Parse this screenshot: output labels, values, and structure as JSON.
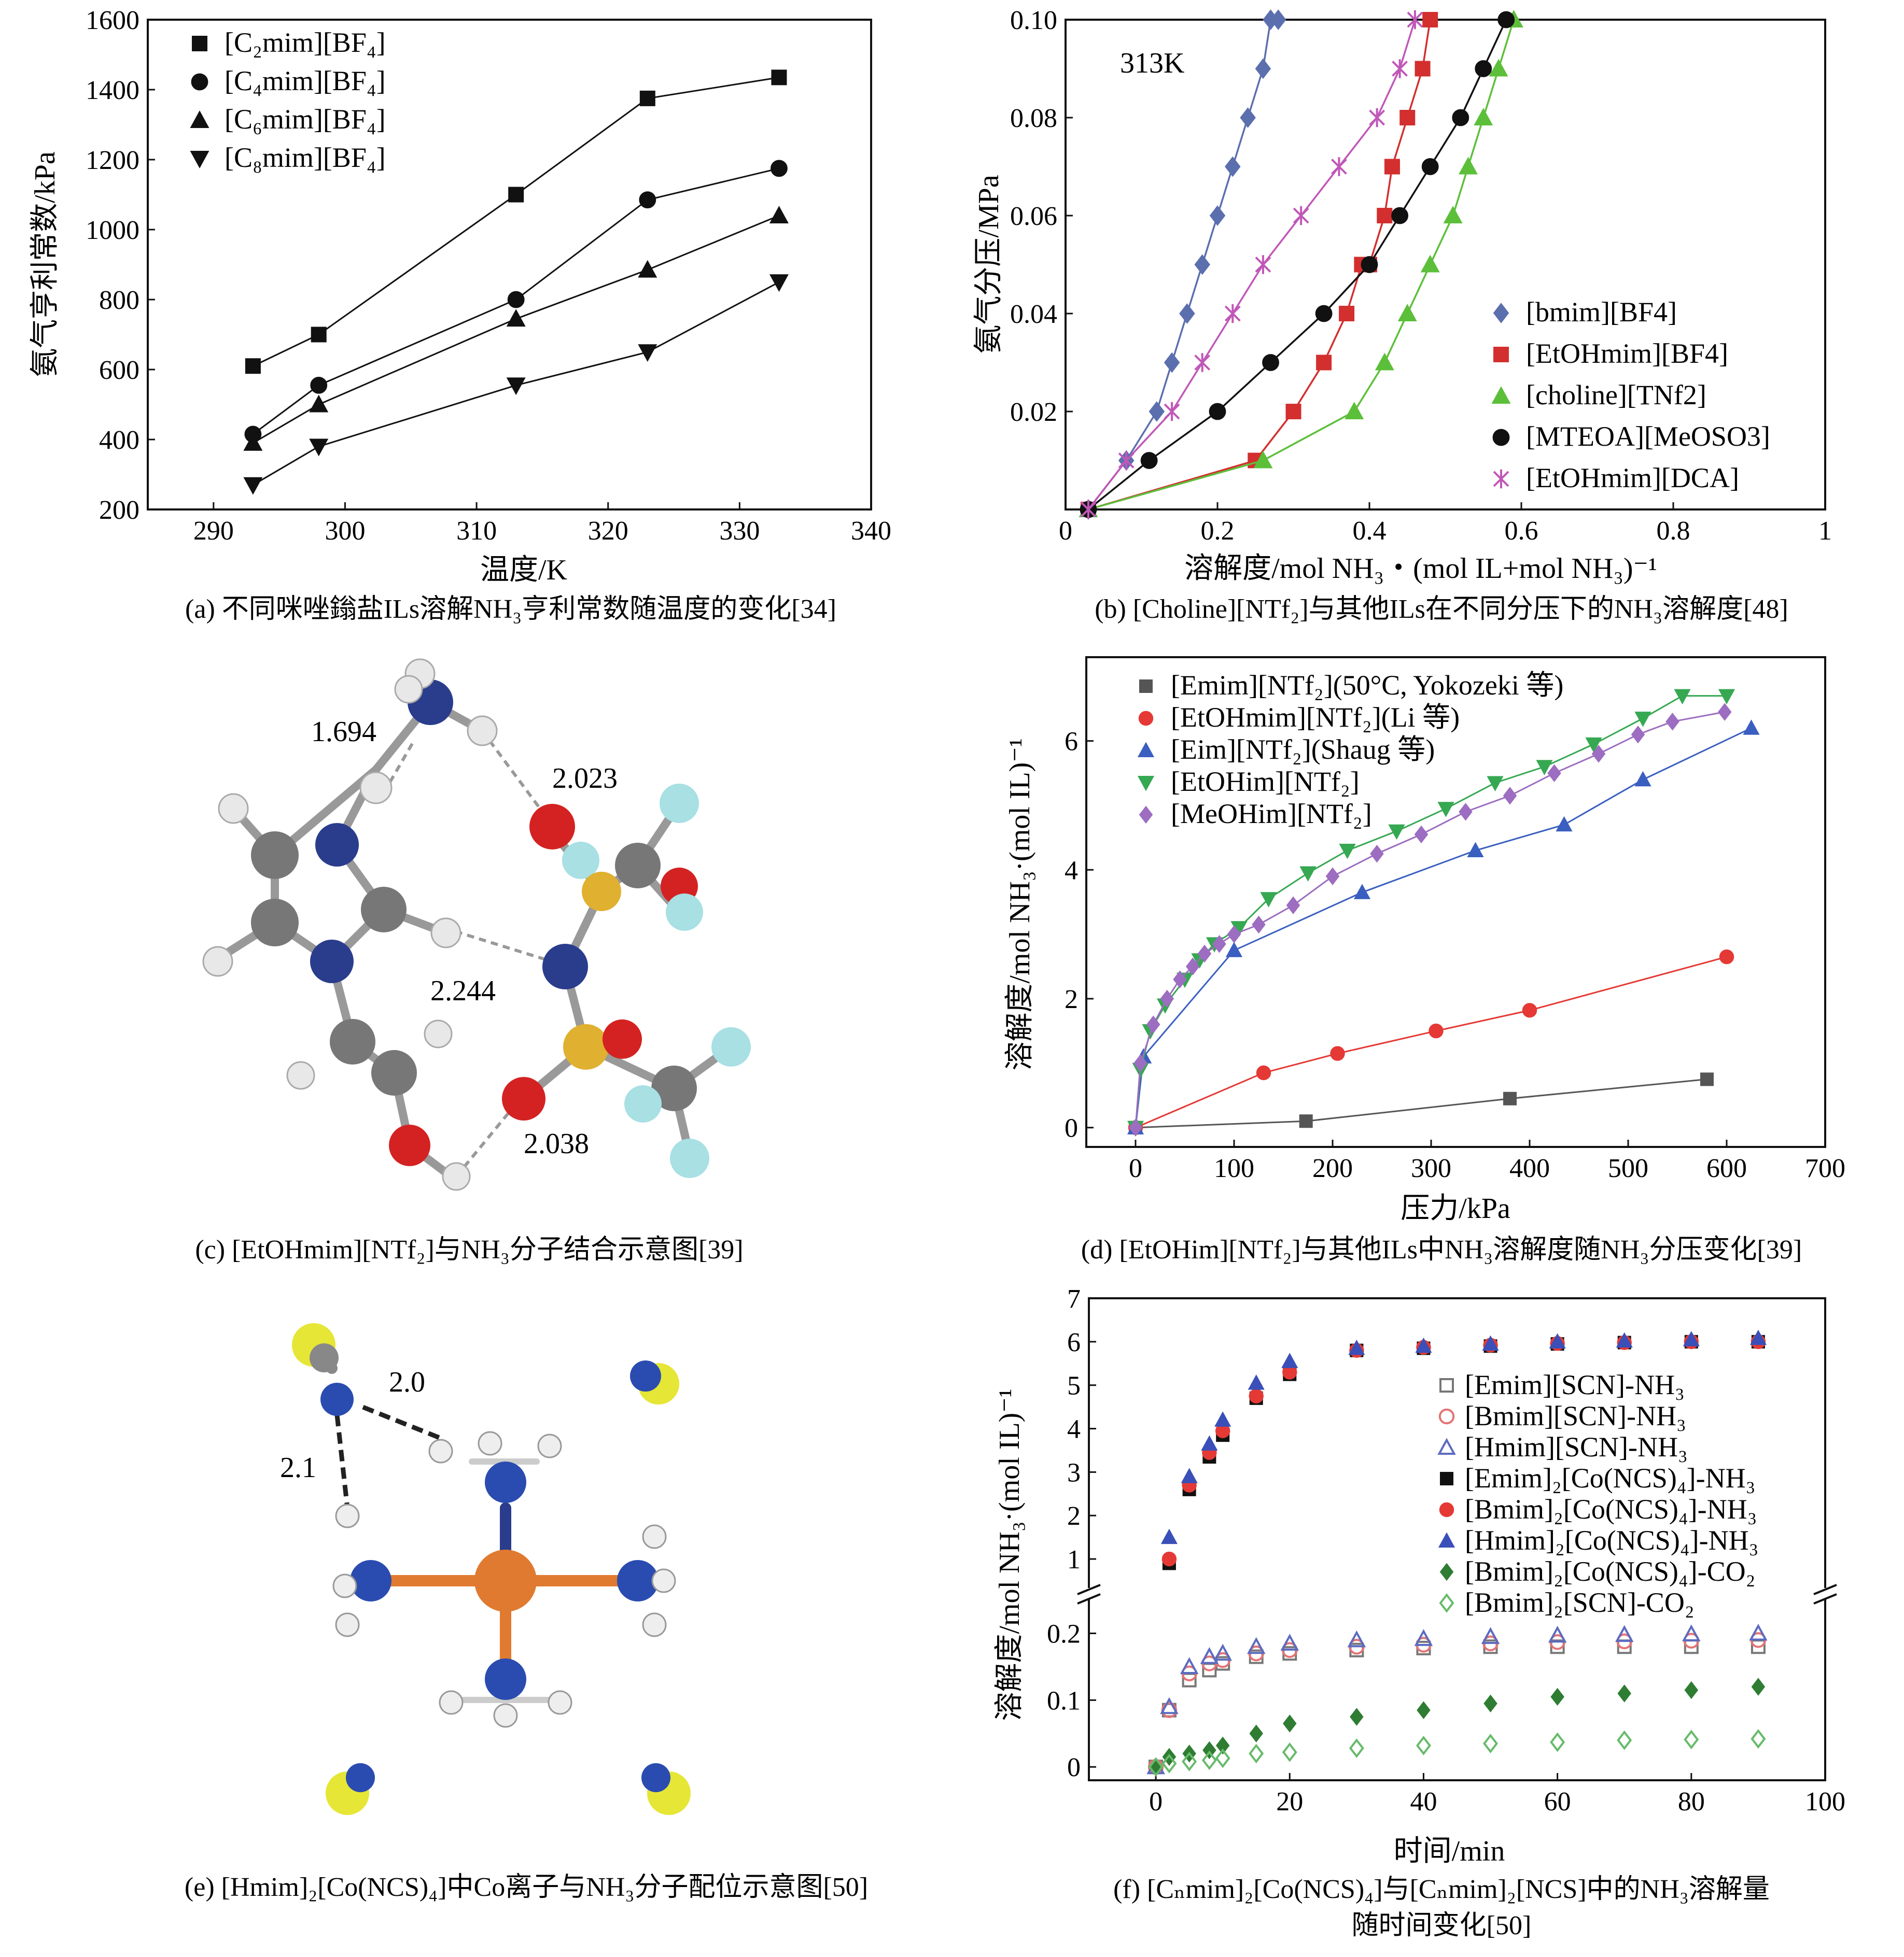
{
  "chart_data": [
    {
      "id": "a",
      "type": "line",
      "caption": "(a) 不同咪唑鎓盐ILs溶解NH₃亨利常数随温度的变化[34]",
      "xlabel": "温度/K",
      "ylabel": "氨气亨利常数/kPa",
      "xlim": [
        285,
        340
      ],
      "ylim": [
        200,
        1600
      ],
      "xticks": [
        290,
        300,
        310,
        320,
        330,
        340
      ],
      "yticks": [
        200,
        400,
        600,
        800,
        1000,
        1200,
        1400,
        1600
      ],
      "legend_position": "top-left",
      "series": [
        {
          "name": "[C₂mim][BF₄]",
          "marker": "square",
          "color": "#111111",
          "x": [
            293,
            298,
            313,
            323,
            333
          ],
          "y": [
            610,
            700,
            1100,
            1375,
            1435
          ]
        },
        {
          "name": "[C₄mim][BF₄]",
          "marker": "circle",
          "color": "#111111",
          "x": [
            293,
            298,
            313,
            323,
            333
          ],
          "y": [
            415,
            555,
            800,
            1085,
            1175
          ]
        },
        {
          "name": "[C₆mim][BF₄]",
          "marker": "triangle-up",
          "color": "#111111",
          "x": [
            293,
            298,
            313,
            323,
            333
          ],
          "y": [
            390,
            500,
            745,
            885,
            1040
          ]
        },
        {
          "name": "[C₈mim][BF₄]",
          "marker": "triangle-down",
          "color": "#111111",
          "x": [
            293,
            298,
            313,
            323,
            333
          ],
          "y": [
            270,
            380,
            555,
            650,
            850
          ]
        }
      ]
    },
    {
      "id": "b",
      "type": "line",
      "caption": "(b) [Choline][NTf₂]与其他ILs在不同分压下的NH₃溶解度[48]",
      "xlabel": "溶解度/mol NH₃・(mol IL+mol NH₃)⁻¹",
      "ylabel": "氨气分压/MPa",
      "annotation": "313K",
      "xlim": [
        0,
        1
      ],
      "ylim": [
        0,
        0.1
      ],
      "xticks": [
        0,
        0.2,
        0.4,
        0.6,
        0.8,
        1
      ],
      "xtick_labels": [
        "0",
        "0.2",
        "0.4",
        "0.6",
        "0.8",
        "1"
      ],
      "yticks": [
        0.02,
        0.04,
        0.06,
        0.08,
        0.1
      ],
      "ytick_labels": [
        "0.02",
        "0.04",
        "0.06",
        "0.08",
        "0.10"
      ],
      "legend_position": "bottom-right",
      "series": [
        {
          "name": "[bmim][BF4]",
          "marker": "diamond",
          "color": "#5b6fae",
          "x": [
            0.03,
            0.08,
            0.12,
            0.14,
            0.16,
            0.18,
            0.2,
            0.22,
            0.24,
            0.26,
            0.27,
            0.28
          ],
          "y": [
            0,
            0.01,
            0.02,
            0.03,
            0.04,
            0.05,
            0.06,
            0.07,
            0.08,
            0.09,
            0.1,
            0.1
          ]
        },
        {
          "name": "[EtOHmim][BF4]",
          "marker": "square",
          "color": "#d32f2f",
          "x": [
            0.03,
            0.25,
            0.3,
            0.34,
            0.37,
            0.39,
            0.4,
            0.42,
            0.43,
            0.45,
            0.47,
            0.48
          ],
          "y": [
            0,
            0.01,
            0.02,
            0.03,
            0.04,
            0.05,
            0.05,
            0.06,
            0.07,
            0.08,
            0.09,
            0.1
          ]
        },
        {
          "name": "[choline][TNf2]",
          "marker": "triangle-up",
          "color": "#5cbf3a",
          "x": [
            0.03,
            0.26,
            0.38,
            0.42,
            0.45,
            0.48,
            0.51,
            0.53,
            0.55,
            0.57,
            0.59
          ],
          "y": [
            0,
            0.01,
            0.02,
            0.03,
            0.04,
            0.05,
            0.06,
            0.07,
            0.08,
            0.09,
            0.1
          ]
        },
        {
          "name": "[MTEOA][MeOSO3]",
          "marker": "circle",
          "color": "#111111",
          "x": [
            0.03,
            0.11,
            0.2,
            0.27,
            0.34,
            0.4,
            0.44,
            0.48,
            0.52,
            0.55,
            0.58
          ],
          "y": [
            0,
            0.01,
            0.02,
            0.03,
            0.04,
            0.05,
            0.06,
            0.07,
            0.08,
            0.09,
            0.1
          ]
        },
        {
          "name": "[EtOHmim][DCA]",
          "marker": "star",
          "color": "#c057b8",
          "x": [
            0.03,
            0.08,
            0.14,
            0.18,
            0.22,
            0.26,
            0.31,
            0.36,
            0.41,
            0.44,
            0.46
          ],
          "y": [
            0,
            0.01,
            0.02,
            0.03,
            0.04,
            0.05,
            0.06,
            0.07,
            0.08,
            0.09,
            0.1
          ]
        }
      ]
    },
    {
      "id": "c",
      "type": "diagram",
      "caption": "(c) [EtOHmim][NTf₂]与NH₃分子结合示意图[39]",
      "distances": [
        "1.694",
        "2.023",
        "2.244",
        "2.038"
      ]
    },
    {
      "id": "d",
      "type": "line",
      "caption": "(d) [EtOHim][NTf₂]与其他ILs中NH₃溶解度随NH₃分压变化[39]",
      "xlabel": "压力/kPa",
      "ylabel": "溶解度/mol NH₃·(mol IL)⁻¹",
      "xlim": [
        -50,
        700
      ],
      "ylim": [
        -0.3,
        7.3
      ],
      "xticks": [
        0,
        100,
        200,
        300,
        400,
        500,
        600,
        700
      ],
      "yticks": [
        0,
        2,
        4,
        6
      ],
      "legend_position": "top-left",
      "series": [
        {
          "name": "[Emim][NTf₂](50°C, Yokozeki 等)",
          "marker": "square",
          "color": "#555555",
          "x": [
            0,
            173,
            380,
            580
          ],
          "y": [
            0,
            0.1,
            0.45,
            0.75
          ]
        },
        {
          "name": "[EtOHmim][NTf₂](Li 等)",
          "marker": "circle",
          "color": "#e53935",
          "x": [
            0,
            130,
            205,
            305,
            400,
            600
          ],
          "y": [
            0,
            0.85,
            1.15,
            1.5,
            1.82,
            2.65
          ]
        },
        {
          "name": "[Eim][NTf₂](Shaug 等)",
          "marker": "triangle-up",
          "color": "#3a5fc0",
          "x": [
            0,
            8,
            100,
            230,
            345,
            435,
            515,
            625
          ],
          "y": [
            0,
            1.1,
            2.75,
            3.65,
            4.3,
            4.7,
            5.4,
            6.2
          ]
        },
        {
          "name": "[EtOHim][NTf₂]",
          "marker": "triangle-down",
          "color": "#36a852",
          "x": [
            0,
            5,
            15,
            30,
            50,
            65,
            80,
            105,
            135,
            175,
            215,
            265,
            315,
            365,
            415,
            465,
            515,
            555,
            600
          ],
          "y": [
            0,
            0.9,
            1.5,
            1.9,
            2.3,
            2.6,
            2.85,
            3.1,
            3.55,
            3.95,
            4.3,
            4.6,
            4.95,
            5.35,
            5.6,
            5.95,
            6.35,
            6.7,
            6.7
          ]
        },
        {
          "name": "[MeOHim][NTf₂]",
          "marker": "diamond",
          "color": "#9c6dc0",
          "x": [
            0,
            5,
            18,
            32,
            45,
            58,
            70,
            85,
            100,
            125,
            160,
            200,
            245,
            290,
            335,
            380,
            425,
            470,
            510,
            545,
            598
          ],
          "y": [
            0,
            1.0,
            1.6,
            2.0,
            2.3,
            2.5,
            2.7,
            2.85,
            3.0,
            3.15,
            3.45,
            3.9,
            4.25,
            4.55,
            4.9,
            5.15,
            5.5,
            5.8,
            6.1,
            6.3,
            6.45
          ]
        }
      ]
    },
    {
      "id": "e",
      "type": "diagram",
      "caption": "(e) [Hmim]₂[Co(NCS)₄]中Co离子与NH₃分子配位示意图[50]",
      "distances": [
        "2.0",
        "2.1"
      ]
    },
    {
      "id": "f",
      "type": "scatter",
      "caption": "(f) [Cₙmim]₂[Co(NCS)₄]与[Cₙmim]₂[NCS]中的NH₃溶解量随时间变化[50]",
      "caption_line1": "(f) [Cₙmim]₂[Co(NCS)₄]与[Cₙmim]₂[NCS]中的NH₃溶解量",
      "caption_line2": "随时间变化[50]",
      "xlabel": "时间/min",
      "ylabel": "溶解度/mol NH₃·(mol IL)⁻¹",
      "xlim": [
        -10,
        100
      ],
      "xticks": [
        0,
        20,
        40,
        60,
        80,
        100
      ],
      "y_upper_range": [
        0.5,
        7
      ],
      "y_upper_ticks": [
        1,
        2,
        3,
        4,
        5,
        6,
        7
      ],
      "y_lower_range": [
        -0.02,
        0.24
      ],
      "y_lower_ticks": [
        0,
        0.1,
        0.2
      ],
      "axis_break": true,
      "legend_position": "right",
      "series": [
        {
          "name": "[Emim][SCN]-NH₃",
          "marker": "square-open",
          "color": "#777777",
          "x": [
            0,
            2,
            5,
            8,
            10,
            15,
            20,
            30,
            40,
            50,
            60,
            70,
            80,
            90
          ],
          "y": [
            0,
            0.085,
            0.13,
            0.145,
            0.155,
            0.165,
            0.17,
            0.175,
            0.178,
            0.18,
            0.18,
            0.18,
            0.18,
            0.18
          ]
        },
        {
          "name": "[Bmim][SCN]-NH₃",
          "marker": "circle-open",
          "color": "#e57373",
          "x": [
            0,
            2,
            5,
            8,
            10,
            15,
            20,
            30,
            40,
            50,
            60,
            70,
            80,
            90
          ],
          "y": [
            0,
            0.085,
            0.14,
            0.155,
            0.16,
            0.17,
            0.175,
            0.18,
            0.183,
            0.185,
            0.187,
            0.188,
            0.189,
            0.19
          ]
        },
        {
          "name": "[Hmim][SCN]-NH₃",
          "marker": "triangle-open",
          "color": "#5c6bc0",
          "x": [
            0,
            2,
            5,
            8,
            10,
            15,
            20,
            30,
            40,
            50,
            60,
            70,
            80,
            90
          ],
          "y": [
            0,
            0.09,
            0.15,
            0.165,
            0.17,
            0.18,
            0.185,
            0.19,
            0.192,
            0.195,
            0.197,
            0.198,
            0.199,
            0.2
          ]
        },
        {
          "name": "[Emim]₂[Co(NCS)₄]-NH₃",
          "marker": "square",
          "color": "#111111",
          "x": [
            2,
            5,
            8,
            10,
            15,
            20,
            30,
            40,
            50,
            60,
            70,
            80,
            90
          ],
          "y": [
            0.9,
            2.6,
            3.35,
            3.85,
            4.7,
            5.25,
            5.8,
            5.85,
            5.9,
            5.95,
            5.98,
            6.0,
            6.0
          ]
        },
        {
          "name": "[Bmim]₂[Co(NCS)₄]-NH₃",
          "marker": "circle",
          "color": "#e53935",
          "x": [
            2,
            5,
            8,
            10,
            15,
            20,
            30,
            40,
            50,
            60,
            70,
            80,
            90
          ],
          "y": [
            1.0,
            2.7,
            3.45,
            3.95,
            4.75,
            5.3,
            5.8,
            5.87,
            5.92,
            5.96,
            5.98,
            6.0,
            6.0
          ]
        },
        {
          "name": "[Hmim]₂[Co(NCS)₄]-NH₃",
          "marker": "triangle",
          "color": "#3a4fb8",
          "x": [
            2,
            5,
            8,
            10,
            15,
            20,
            30,
            40,
            50,
            60,
            70,
            80,
            90
          ],
          "y": [
            1.5,
            2.9,
            3.65,
            4.2,
            5.05,
            5.55,
            5.85,
            5.9,
            5.95,
            6.0,
            6.02,
            6.05,
            6.08
          ]
        },
        {
          "name": "[Bmim]₂[Co(NCS)₄]-CO₂",
          "marker": "diamond",
          "color": "#2e7d32",
          "x": [
            0,
            2,
            5,
            8,
            10,
            15,
            20,
            30,
            40,
            50,
            60,
            70,
            80,
            90
          ],
          "y": [
            0,
            0.015,
            0.02,
            0.025,
            0.032,
            0.05,
            0.065,
            0.075,
            0.085,
            0.095,
            0.105,
            0.11,
            0.115,
            0.12
          ]
        },
        {
          "name": "[Bmim]₂[SCN]-CO₂",
          "marker": "diamond-open",
          "color": "#66bb6a",
          "x": [
            0,
            2,
            5,
            8,
            10,
            15,
            20,
            30,
            40,
            50,
            60,
            70,
            80,
            90
          ],
          "y": [
            0,
            0.005,
            0.008,
            0.01,
            0.013,
            0.02,
            0.022,
            0.028,
            0.032,
            0.035,
            0.037,
            0.04,
            0.041,
            0.042
          ]
        }
      ]
    }
  ]
}
